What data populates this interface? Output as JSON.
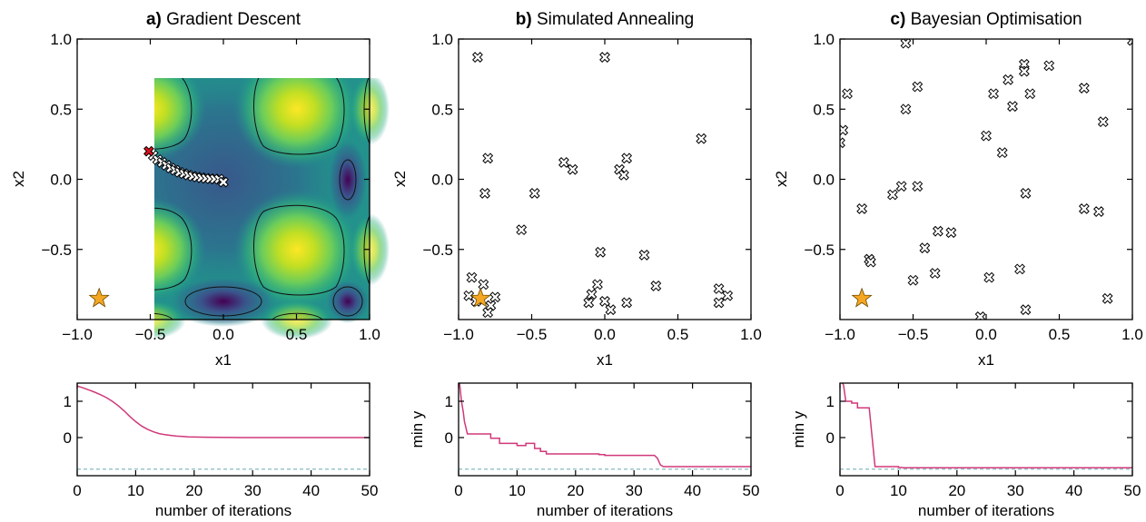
{
  "chart_data": [
    {
      "type": "contour",
      "panel_letter": "a)",
      "title": "Gradient Descent",
      "xlabel": "x1",
      "ylabel": "x2",
      "xlim": [
        -1.0,
        1.0
      ],
      "ylim": [
        -1.0,
        1.0
      ],
      "xticks": [
        "−1.0",
        "−0.5",
        "0.0",
        "0.5",
        "1.0"
      ],
      "yticks": [
        "−0.5",
        "0.0",
        "0.5",
        "1.0"
      ],
      "optimum": [
        -0.85,
        -0.85
      ],
      "start_point": [
        -0.51,
        0.2
      ],
      "samples": [
        [
          -0.48,
          0.17
        ],
        [
          -0.45,
          0.14
        ],
        [
          -0.42,
          0.12
        ],
        [
          -0.39,
          0.1
        ],
        [
          -0.36,
          0.08
        ],
        [
          -0.33,
          0.065
        ],
        [
          -0.3,
          0.05
        ],
        [
          -0.27,
          0.04
        ],
        [
          -0.24,
          0.03
        ],
        [
          -0.21,
          0.022
        ],
        [
          -0.18,
          0.016
        ],
        [
          -0.15,
          0.011
        ],
        [
          -0.12,
          0.007
        ],
        [
          -0.09,
          0.004
        ],
        [
          -0.06,
          0.002
        ],
        [
          -0.03,
          0.001
        ],
        [
          0.0,
          -0.02
        ]
      ]
    },
    {
      "type": "contour",
      "panel_letter": "b)",
      "title": "Simulated Annealing",
      "xlabel": "x1",
      "ylabel": "x2",
      "xlim": [
        -1.0,
        1.0
      ],
      "ylim": [
        -1.0,
        1.0
      ],
      "xticks": [
        "−1.0",
        "−0.5",
        "0.0",
        "0.5",
        "1.0"
      ],
      "yticks": [
        "−0.5",
        "0.0",
        "0.5",
        "1.0"
      ],
      "optimum": [
        -0.85,
        -0.85
      ],
      "samples": [
        [
          -0.87,
          0.87
        ],
        [
          0.0,
          0.87
        ],
        [
          0.66,
          0.29
        ],
        [
          -0.8,
          0.15
        ],
        [
          -0.82,
          -0.1
        ],
        [
          -0.28,
          0.12
        ],
        [
          -0.22,
          0.07
        ],
        [
          0.1,
          0.07
        ],
        [
          0.15,
          0.15
        ],
        [
          0.13,
          0.03
        ],
        [
          -0.48,
          -0.1
        ],
        [
          -0.57,
          -0.36
        ],
        [
          -0.03,
          -0.52
        ],
        [
          0.27,
          -0.54
        ],
        [
          0.35,
          -0.76
        ],
        [
          -0.91,
          -0.7
        ],
        [
          -0.83,
          -0.75
        ],
        [
          -0.93,
          -0.83
        ],
        [
          -0.88,
          -0.87
        ],
        [
          -0.75,
          -0.84
        ],
        [
          -0.78,
          -0.9
        ],
        [
          -0.8,
          -0.95
        ],
        [
          -0.05,
          -0.75
        ],
        [
          -0.09,
          -0.82
        ],
        [
          -0.11,
          -0.88
        ],
        [
          0.0,
          -0.87
        ],
        [
          0.04,
          -0.93
        ],
        [
          0.15,
          -0.88
        ],
        [
          0.78,
          -0.78
        ],
        [
          0.84,
          -0.83
        ],
        [
          0.78,
          -0.88
        ]
      ]
    },
    {
      "type": "contour",
      "panel_letter": "c)",
      "title": "Bayesian Optimisation",
      "xlabel": "x1",
      "ylabel": "x2",
      "xlim": [
        -1.0,
        1.0
      ],
      "ylim": [
        -1.0,
        1.0
      ],
      "xticks": [
        "−1.0",
        "−0.5",
        "0.0",
        "0.5",
        "1.0"
      ],
      "yticks": [
        "−0.5",
        "0.0",
        "0.5",
        "1.0"
      ],
      "optimum": [
        -0.85,
        -0.85
      ],
      "samples": [
        [
          -0.55,
          0.97
        ],
        [
          1.0,
          0.99
        ],
        [
          0.26,
          0.82
        ],
        [
          0.26,
          0.77
        ],
        [
          0.43,
          0.81
        ],
        [
          0.15,
          0.71
        ],
        [
          0.67,
          0.65
        ],
        [
          -0.47,
          0.66
        ],
        [
          -0.95,
          0.61
        ],
        [
          0.05,
          0.61
        ],
        [
          0.3,
          0.61
        ],
        [
          0.18,
          0.52
        ],
        [
          -0.55,
          0.5
        ],
        [
          -0.98,
          0.35
        ],
        [
          -1.0,
          0.26
        ],
        [
          0.8,
          0.41
        ],
        [
          0.0,
          0.31
        ],
        [
          0.11,
          0.19
        ],
        [
          -0.47,
          -0.05
        ],
        [
          -0.58,
          -0.05
        ],
        [
          -0.64,
          -0.11
        ],
        [
          0.27,
          -0.1
        ],
        [
          -0.85,
          -0.21
        ],
        [
          0.67,
          -0.21
        ],
        [
          0.77,
          -0.23
        ],
        [
          -0.33,
          -0.37
        ],
        [
          -0.24,
          -0.38
        ],
        [
          -0.42,
          -0.49
        ],
        [
          -0.8,
          -0.57
        ],
        [
          -0.79,
          -0.59
        ],
        [
          0.23,
          -0.64
        ],
        [
          -0.35,
          -0.67
        ],
        [
          -0.5,
          -0.72
        ],
        [
          0.02,
          -0.7
        ],
        [
          0.83,
          -0.85
        ],
        [
          0.27,
          -0.93
        ],
        [
          -0.04,
          -0.98
        ]
      ]
    },
    {
      "type": "line",
      "xlabel": "number of iterations",
      "ylabel": "",
      "xlim": [
        0,
        50
      ],
      "ylim": [
        -1.05,
        1.5
      ],
      "xticks": [
        "0",
        "10",
        "20",
        "30",
        "40",
        "50"
      ],
      "yticks": [
        "0",
        "1"
      ],
      "optimum_value": -0.87,
      "x": [
        0,
        1,
        2,
        3,
        4,
        5,
        6,
        7,
        8,
        9,
        10,
        11,
        12,
        13,
        14,
        15,
        16,
        17,
        18,
        19,
        20,
        22,
        24,
        26,
        28,
        30,
        35,
        40,
        45,
        50
      ],
      "y": [
        1.42,
        1.37,
        1.31,
        1.25,
        1.18,
        1.1,
        1.0,
        0.88,
        0.74,
        0.58,
        0.44,
        0.32,
        0.23,
        0.16,
        0.11,
        0.08,
        0.06,
        0.04,
        0.03,
        0.02,
        0.015,
        0.01,
        0.005,
        0.002,
        0.001,
        0.0,
        0.0,
        0.0,
        0.0,
        0.0
      ]
    },
    {
      "type": "line",
      "xlabel": "number of iterations",
      "ylabel": "min y",
      "xlim": [
        0,
        50
      ],
      "ylim": [
        -1.05,
        1.5
      ],
      "xticks": [
        "0",
        "10",
        "20",
        "30",
        "40",
        "50"
      ],
      "yticks": [
        "0",
        "1"
      ],
      "optimum_value": -0.87,
      "x": [
        0,
        0.2,
        0.5,
        0.8,
        1,
        1.5,
        1.5,
        5.5,
        5.5,
        7,
        7,
        10,
        10,
        11.5,
        11.5,
        13,
        13,
        14,
        14,
        15,
        15,
        24,
        24,
        25,
        25,
        33.5,
        34,
        34.5,
        35,
        50
      ],
      "y": [
        1.6,
        1.45,
        1.0,
        0.7,
        0.45,
        0.1,
        0.1,
        0.1,
        -0.02,
        -0.02,
        -0.16,
        -0.16,
        -0.22,
        -0.22,
        -0.16,
        -0.16,
        -0.3,
        -0.3,
        -0.38,
        -0.38,
        -0.45,
        -0.45,
        -0.47,
        -0.47,
        -0.49,
        -0.49,
        -0.57,
        -0.75,
        -0.8,
        -0.8
      ]
    },
    {
      "type": "line",
      "xlabel": "number of iterations",
      "ylabel": "min y",
      "xlim": [
        0,
        50
      ],
      "ylim": [
        -1.05,
        1.5
      ],
      "xticks": [
        "0",
        "10",
        "20",
        "30",
        "40",
        "50"
      ],
      "yticks": [
        "0",
        "1"
      ],
      "optimum_value": -0.87,
      "x": [
        0,
        0.6,
        1.0,
        2,
        2,
        3,
        3,
        5,
        5,
        6,
        6,
        10,
        10,
        11,
        50
      ],
      "y": [
        1.6,
        1.45,
        1.0,
        1.0,
        0.95,
        0.95,
        0.82,
        0.82,
        0.82,
        -0.8,
        -0.8,
        -0.8,
        -0.82,
        -0.83,
        -0.83
      ]
    }
  ],
  "colors": {
    "line": "#d0387a",
    "optimum_line": "#7ab3b7",
    "star": "#f5a623",
    "start_marker": "#e0101c",
    "sample_marker": "#ffffff"
  }
}
